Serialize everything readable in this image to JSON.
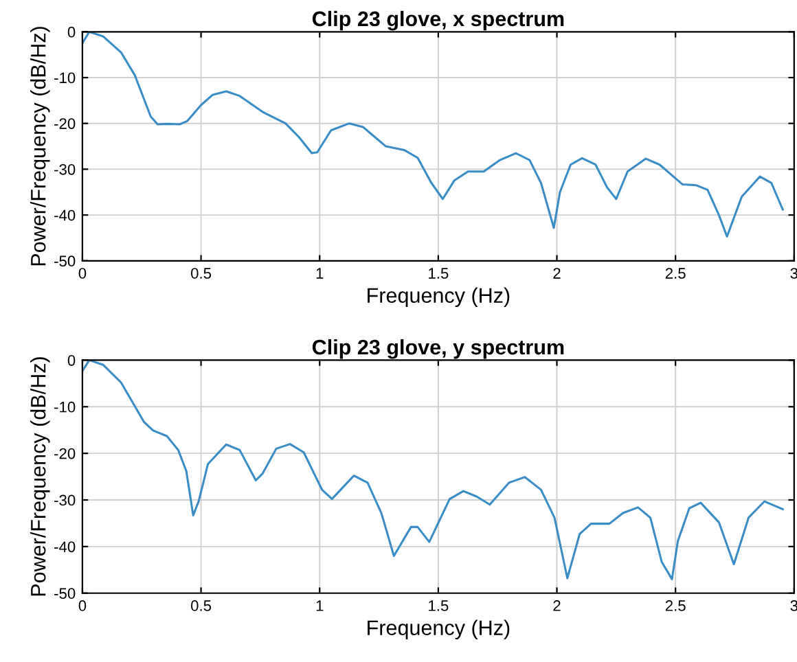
{
  "chart_data": [
    {
      "type": "line",
      "title": "Clip 23 glove, x spectrum",
      "xlabel": "Frequency (Hz)",
      "ylabel": "Power/Frequency (dB/Hz)",
      "xlim": [
        0,
        3
      ],
      "ylim": [
        -50,
        0
      ],
      "xticks": [
        0,
        0.5,
        1,
        1.5,
        2,
        2.5,
        3
      ],
      "yticks": [
        -50,
        -40,
        -30,
        -20,
        -10,
        0
      ],
      "grid": true,
      "series": [
        {
          "color": "#3a8cc6",
          "x": [
            0,
            0.029,
            0.087,
            0.163,
            0.221,
            0.288,
            0.317,
            0.356,
            0.41,
            0.442,
            0.5,
            0.548,
            0.606,
            0.663,
            0.76,
            0.856,
            0.913,
            0.967,
            0.99,
            1.048,
            1.125,
            1.183,
            1.279,
            1.356,
            1.413,
            1.471,
            1.519,
            1.567,
            1.625,
            1.692,
            1.76,
            1.827,
            1.885,
            1.933,
            1.987,
            2.013,
            2.058,
            2.106,
            2.163,
            2.212,
            2.25,
            2.298,
            2.375,
            2.433,
            2.529,
            2.587,
            2.635,
            2.683,
            2.717,
            2.779,
            2.856,
            2.904,
            2.952
          ],
          "values": [
            -2.5,
            0,
            -1,
            -4.5,
            -9.5,
            -18.5,
            -20.2,
            -20.1,
            -20.2,
            -19.5,
            -16,
            -13.8,
            -13,
            -14,
            -17.5,
            -20,
            -23,
            -26.5,
            -26.3,
            -21.5,
            -20,
            -20.8,
            -25,
            -25.8,
            -27.5,
            -33,
            -36.5,
            -32.5,
            -30.5,
            -30.5,
            -28,
            -26.5,
            -28,
            -33,
            -42.8,
            -35,
            -29,
            -27.6,
            -29,
            -34,
            -36.5,
            -30.5,
            -27.7,
            -29,
            -33.3,
            -33.5,
            -34.5,
            -40,
            -44.7,
            -36,
            -31.6,
            -33,
            -38.8
          ]
        }
      ]
    },
    {
      "type": "line",
      "title": "Clip 23 glove, y spectrum",
      "xlabel": "Frequency (Hz)",
      "ylabel": "Power/Frequency (dB/Hz)",
      "xlim": [
        0,
        3
      ],
      "ylim": [
        -50,
        0
      ],
      "xticks": [
        0,
        0.5,
        1,
        1.5,
        2,
        2.5,
        3
      ],
      "yticks": [
        -50,
        -40,
        -30,
        -20,
        -10,
        0
      ],
      "grid": true,
      "series": [
        {
          "color": "#3a8cc6",
          "x": [
            0,
            0.029,
            0.087,
            0.163,
            0.26,
            0.298,
            0.356,
            0.404,
            0.438,
            0.467,
            0.49,
            0.529,
            0.606,
            0.663,
            0.731,
            0.76,
            0.817,
            0.875,
            0.933,
            1.01,
            1.052,
            1.144,
            1.202,
            1.26,
            1.313,
            1.385,
            1.413,
            1.462,
            1.548,
            1.606,
            1.663,
            1.717,
            1.798,
            1.865,
            1.933,
            1.99,
            2.044,
            2.096,
            2.144,
            2.221,
            2.279,
            2.342,
            2.394,
            2.442,
            2.485,
            2.51,
            2.558,
            2.606,
            2.683,
            2.746,
            2.808,
            2.875,
            2.952
          ],
          "values": [
            -2.3,
            0,
            -1,
            -4.8,
            -13.3,
            -15.1,
            -16.3,
            -19.3,
            -23.8,
            -33.3,
            -30.3,
            -22.3,
            -18.1,
            -19.3,
            -25.8,
            -24.3,
            -19,
            -18,
            -19.8,
            -27.8,
            -29.8,
            -24.8,
            -26.3,
            -32.8,
            -42,
            -35.8,
            -35.8,
            -39,
            -29.8,
            -28.1,
            -29.3,
            -31,
            -26.3,
            -25.1,
            -27.8,
            -33.8,
            -46.8,
            -37.3,
            -35.1,
            -35.1,
            -32.8,
            -31.6,
            -33.8,
            -43.3,
            -47,
            -38.8,
            -31.8,
            -30.6,
            -34.8,
            -43.8,
            -33.8,
            -30.3,
            -32
          ]
        }
      ]
    }
  ]
}
